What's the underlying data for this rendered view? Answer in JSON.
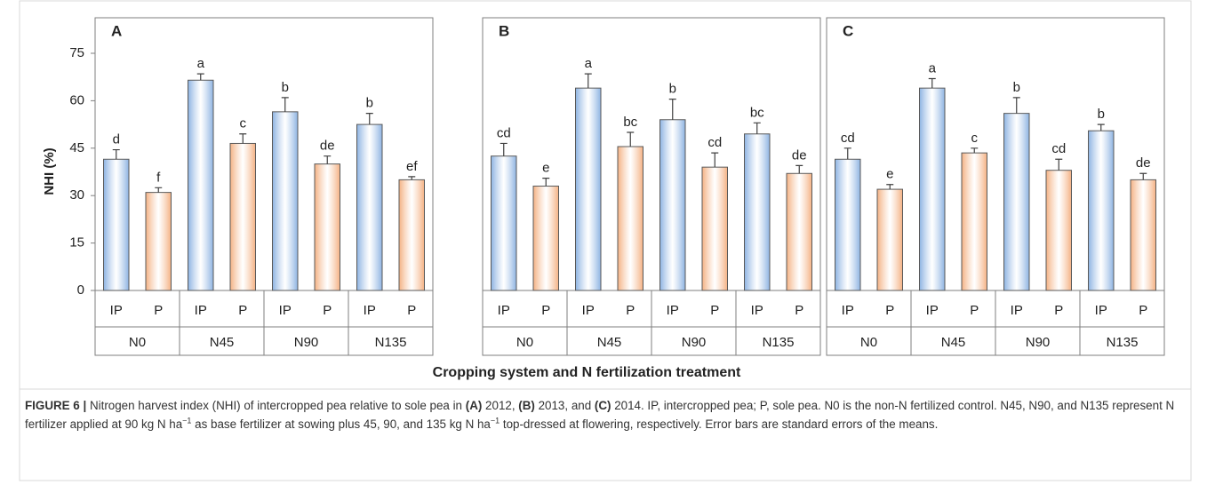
{
  "chart_data": [
    {
      "type": "bar",
      "title": "A",
      "categories": [
        "IP",
        "P",
        "IP",
        "P",
        "IP",
        "P",
        "IP",
        "P"
      ],
      "groups": [
        "N0",
        "N45",
        "N90",
        "N135"
      ],
      "values": [
        41.5,
        31,
        66.5,
        46.5,
        56.5,
        40,
        52.5,
        35
      ],
      "errors": [
        3,
        1.5,
        2,
        3,
        4.5,
        2.5,
        3.5,
        1
      ],
      "annotations": [
        "d",
        "f",
        "a",
        "c",
        "b",
        "de",
        "b",
        "ef"
      ],
      "colors": [
        "#8db3e2",
        "#f4b183",
        "#8db3e2",
        "#f4b183",
        "#8db3e2",
        "#f4b183",
        "#8db3e2",
        "#f4b183"
      ],
      "ylim": [
        0,
        75
      ],
      "yticks": [
        0,
        15,
        30,
        45,
        60,
        75
      ]
    },
    {
      "type": "bar",
      "title": "B",
      "categories": [
        "IP",
        "P",
        "IP",
        "P",
        "IP",
        "P",
        "IP",
        "P"
      ],
      "groups": [
        "N0",
        "N45",
        "N90",
        "N135"
      ],
      "values": [
        42.5,
        33,
        64,
        45.5,
        54,
        39,
        49.5,
        37
      ],
      "errors": [
        4,
        2.5,
        4.5,
        4.5,
        6.5,
        4.5,
        3.5,
        2.5
      ],
      "annotations": [
        "cd",
        "e",
        "a",
        "bc",
        "b",
        "cd",
        "bc",
        "de"
      ],
      "colors": [
        "#8db3e2",
        "#f4b183",
        "#8db3e2",
        "#f4b183",
        "#8db3e2",
        "#f4b183",
        "#8db3e2",
        "#f4b183"
      ],
      "ylim": [
        0,
        75
      ]
    },
    {
      "type": "bar",
      "title": "C",
      "categories": [
        "IP",
        "P",
        "IP",
        "P",
        "IP",
        "P",
        "IP",
        "P"
      ],
      "groups": [
        "N0",
        "N45",
        "N90",
        "N135"
      ],
      "values": [
        41.5,
        32,
        64,
        43.5,
        56,
        38,
        50.5,
        35
      ],
      "errors": [
        3.5,
        1.5,
        3,
        1.5,
        5,
        3.5,
        2,
        2
      ],
      "annotations": [
        "cd",
        "e",
        "a",
        "c",
        "b",
        "cd",
        "b",
        "de"
      ],
      "colors": [
        "#8db3e2",
        "#f4b183",
        "#8db3e2",
        "#f4b183",
        "#8db3e2",
        "#f4b183",
        "#8db3e2",
        "#f4b183"
      ],
      "ylim": [
        0,
        75
      ]
    }
  ],
  "y_label": "NHI (%)",
  "x_label": "Cropping system and N fertilization treatment",
  "caption": [
    {
      "text": "FIGURE 6 |",
      "style": "bold"
    },
    {
      "text": " Nitrogen harvest index (NHI) of intercropped pea relative to sole pea in ",
      "style": "plain"
    },
    {
      "text": "(A)",
      "style": "bold"
    },
    {
      "text": " 2012, ",
      "style": "plain"
    },
    {
      "text": "(B)",
      "style": "bold"
    },
    {
      "text": " 2013, and ",
      "style": "plain"
    },
    {
      "text": "(C)",
      "style": "bold"
    },
    {
      "text": " 2014. IP, intercropped pea; P, sole pea. N0 is the non-N fertilized control. N45, N90, and N135 represent N fertilizer applied at 90 kg N ha",
      "style": "plain"
    },
    {
      "text": "−1",
      "style": "sup"
    },
    {
      "text": " as base fertilizer at sowing plus 45, 90, and 135 kg N ha",
      "style": "plain"
    },
    {
      "text": "−1",
      "style": "sup"
    },
    {
      "text": " top-dressed at flowering, respectively. Error bars are standard errors of the means.",
      "style": "plain"
    }
  ]
}
